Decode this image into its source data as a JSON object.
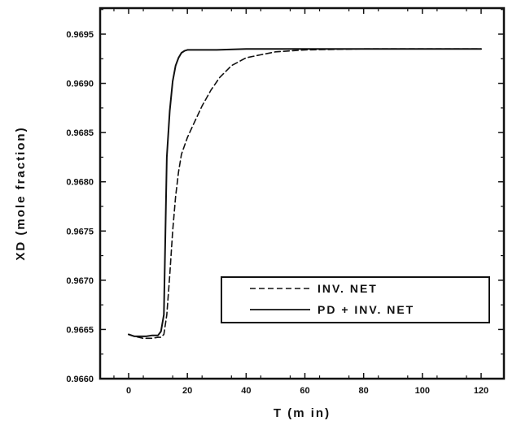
{
  "chart_data": {
    "type": "line",
    "xlabel": "T (m in)",
    "ylabel": "XD (mole fraction)",
    "xlim": [
      -10,
      125
    ],
    "ylim": [
      0.966,
      0.96985
    ],
    "xticks": [
      0,
      20,
      40,
      60,
      80,
      100,
      120
    ],
    "xtick_labels": [
      "0",
      "20",
      "40",
      "60",
      "80",
      "100",
      "120"
    ],
    "yticks": [
      0.966,
      0.9665,
      0.967,
      0.9675,
      0.968,
      0.9685,
      0.969,
      0.9695
    ],
    "ytick_labels": [
      "0.9660",
      "0.9665",
      "0.9670",
      "0.9675",
      "0.9680",
      "0.9685",
      "0.9690",
      "0.9695"
    ],
    "grid": false,
    "legend_position": "lower-right",
    "series": [
      {
        "name": "INV. NET",
        "style": "dashed",
        "x": [
          0,
          2,
          5,
          8,
          10,
          11,
          12,
          13,
          14,
          15,
          16,
          17,
          18,
          20,
          22,
          25,
          28,
          31,
          35,
          40,
          45,
          50,
          60,
          80,
          100,
          120
        ],
        "y": [
          0.96645,
          0.96643,
          0.96641,
          0.96641,
          0.96642,
          0.96642,
          0.96645,
          0.96665,
          0.96705,
          0.9675,
          0.96785,
          0.9681,
          0.96828,
          0.96845,
          0.96858,
          0.96877,
          0.96893,
          0.96906,
          0.96918,
          0.96926,
          0.96929,
          0.96932,
          0.96934,
          0.96935,
          0.96935,
          0.96935
        ]
      },
      {
        "name": "PD + INV. NET",
        "style": "solid",
        "x": [
          0,
          2,
          4,
          6,
          8,
          10,
          11,
          12,
          12.5,
          13,
          14,
          15,
          16,
          17,
          18,
          19,
          20,
          25,
          30,
          40,
          60,
          80,
          100,
          120
        ],
        "y": [
          0.96645,
          0.96643,
          0.96643,
          0.96643,
          0.96644,
          0.96644,
          0.96648,
          0.96665,
          0.96745,
          0.96825,
          0.96872,
          0.96902,
          0.96918,
          0.96926,
          0.96931,
          0.96933,
          0.96934,
          0.96934,
          0.96934,
          0.96935,
          0.96935,
          0.96935,
          0.96935,
          0.96935
        ]
      }
    ]
  }
}
